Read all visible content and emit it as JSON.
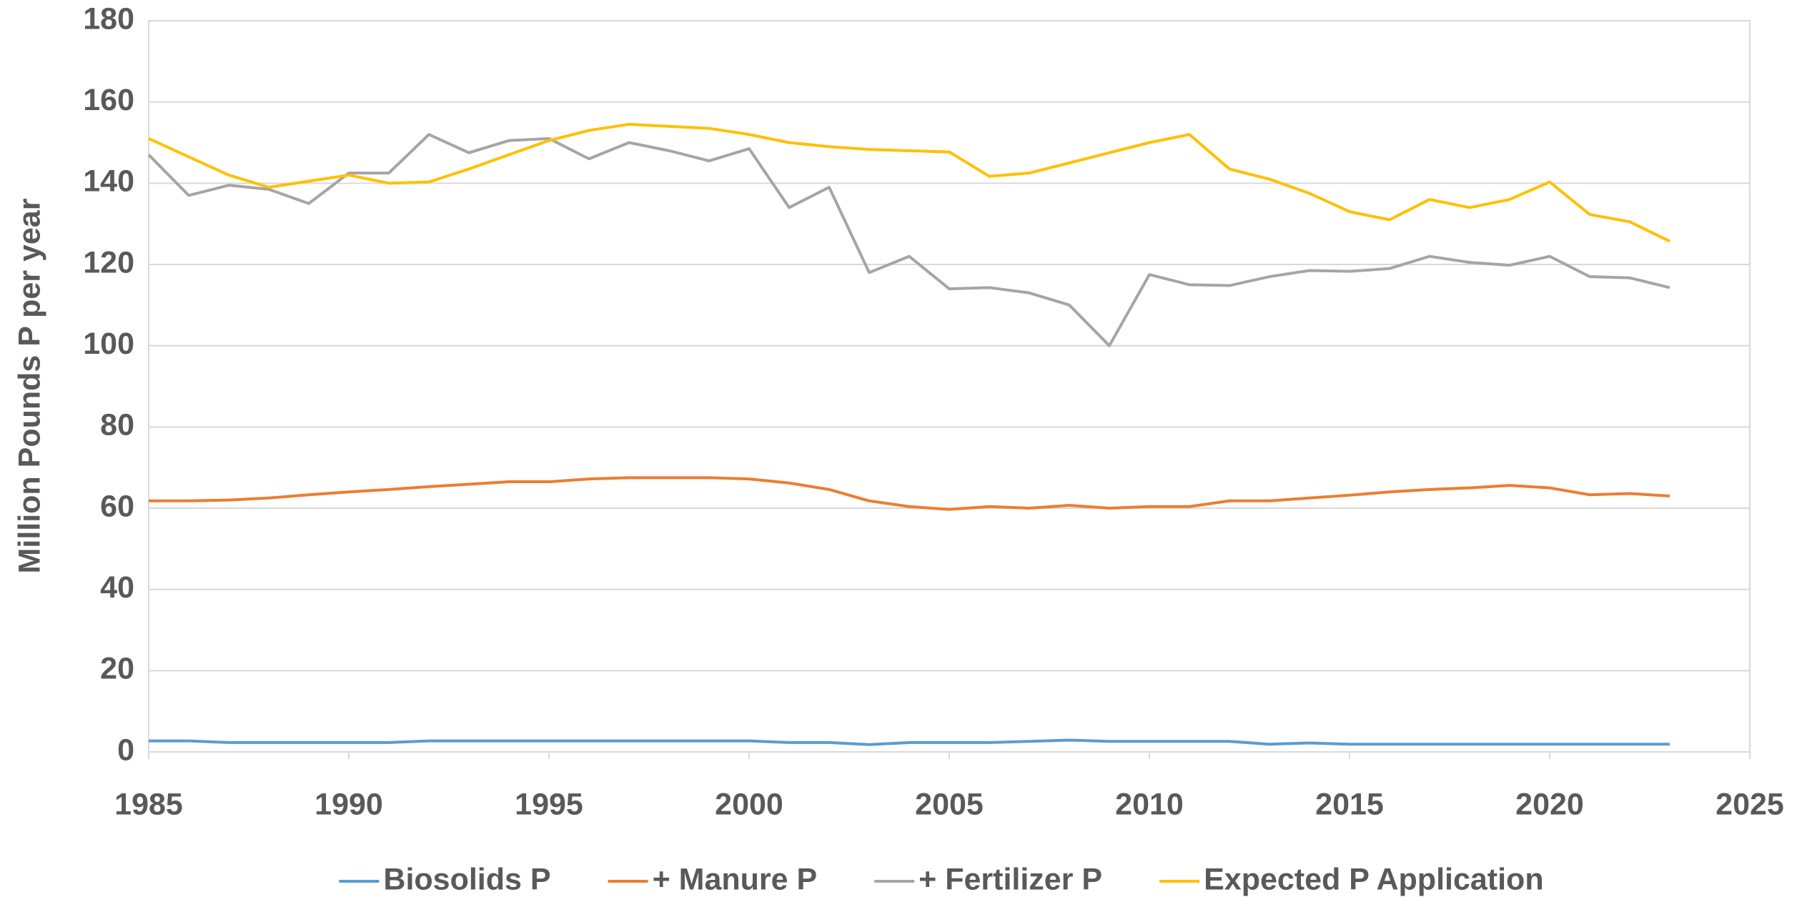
{
  "chart_data": {
    "type": "line",
    "y_label": "Million Pounds P per year",
    "x": [
      1985,
      1986,
      1987,
      1988,
      1989,
      1990,
      1991,
      1992,
      1993,
      1994,
      1995,
      1996,
      1997,
      1998,
      1999,
      2000,
      2001,
      2002,
      2003,
      2004,
      2005,
      2006,
      2007,
      2008,
      2009,
      2010,
      2011,
      2012,
      2013,
      2014,
      2015,
      2016,
      2017,
      2018,
      2019,
      2020,
      2021,
      2022,
      2023
    ],
    "series": [
      {
        "name": "Biosolids P",
        "color": "#5b9bd5",
        "values": [
          2.7,
          2.7,
          2.3,
          2.3,
          2.3,
          2.3,
          2.3,
          2.7,
          2.7,
          2.7,
          2.7,
          2.7,
          2.7,
          2.7,
          2.7,
          2.7,
          2.3,
          2.3,
          1.8,
          2.3,
          2.3,
          2.3,
          2.6,
          2.9,
          2.6,
          2.6,
          2.6,
          2.6,
          1.9,
          2.2,
          1.9,
          1.9,
          1.9,
          1.9,
          1.9,
          1.9,
          1.9,
          1.9,
          1.9
        ]
      },
      {
        "name": "+ Manure P",
        "color": "#ed7d31",
        "values": [
          61.8,
          61.8,
          62,
          62.5,
          63.3,
          64,
          64.6,
          65.3,
          65.9,
          66.5,
          66.5,
          67.2,
          67.5,
          67.5,
          67.5,
          67.2,
          66.2,
          64.6,
          61.8,
          60.4,
          59.7,
          60.4,
          60,
          60.7,
          60,
          60.4,
          60.4,
          61.8,
          61.8,
          62.5,
          63.2,
          64,
          64.6,
          65,
          65.6,
          65,
          63.3,
          63.6,
          63
        ]
      },
      {
        "name": "+ Fertilizer P",
        "color": "#a5a5a5",
        "values": [
          147,
          137,
          139.5,
          138.5,
          135,
          142.5,
          142.5,
          152,
          147.5,
          150.5,
          151,
          146,
          150,
          148,
          145.5,
          148.5,
          134,
          139,
          118,
          122,
          114,
          114.3,
          113,
          110,
          100,
          117.5,
          115,
          114.8,
          117,
          118.5,
          118.3,
          119,
          122,
          120.5,
          119.8,
          122,
          117,
          116.7,
          114.3
        ]
      },
      {
        "name": "Expected P Application",
        "color": "#ffc000",
        "values": [
          151,
          146.5,
          142,
          139,
          140.5,
          142,
          140,
          140.3,
          143.5,
          147,
          150.5,
          153,
          154.5,
          154,
          153.5,
          152,
          150,
          149,
          148.3,
          148,
          147.7,
          141.7,
          142.5,
          145,
          147.5,
          150,
          152,
          143.5,
          141,
          137.5,
          133,
          131,
          136,
          134,
          136,
          140.3,
          132.3,
          130.5,
          125.7
        ]
      }
    ],
    "xlim": [
      1985,
      2025
    ],
    "xticks": [
      1985,
      1990,
      1995,
      2000,
      2005,
      2010,
      2015,
      2020,
      2025
    ],
    "ylim": [
      0,
      180
    ],
    "yticks": [
      0,
      20,
      40,
      60,
      80,
      100,
      120,
      140,
      160,
      180
    ],
    "grid": true,
    "legend": "bottom"
  }
}
